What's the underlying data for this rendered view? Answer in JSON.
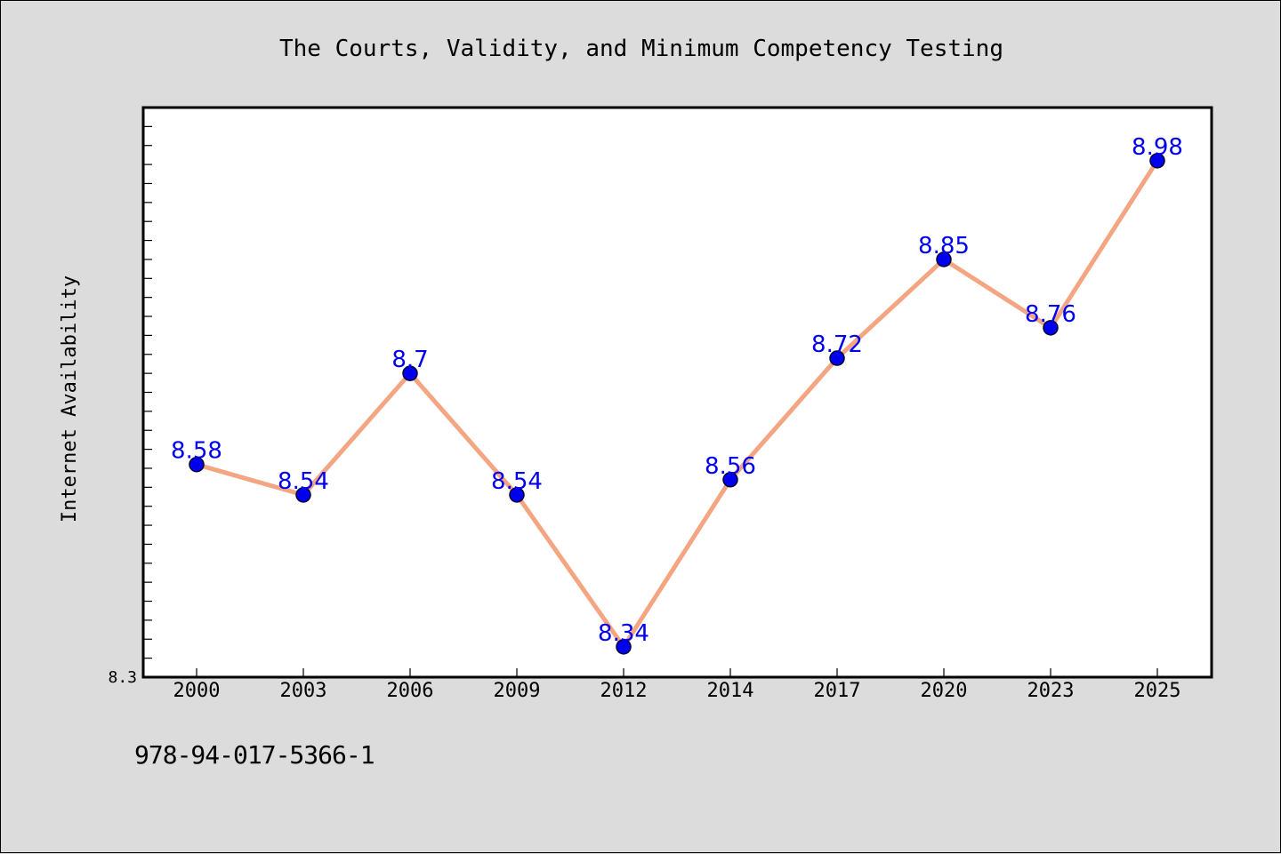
{
  "colors": {
    "background": "#dcdcdc",
    "plot_background": "#ffffff",
    "line": "#f4a582",
    "marker": "#0000ee",
    "data_label": "#0000ee"
  },
  "footer": {
    "isbn": "978-94-017-5366-1"
  },
  "chart_data": {
    "type": "line",
    "title": "The Courts, Validity, and Minimum Competency Testing",
    "xlabel": "",
    "ylabel": "Internet Availability",
    "categories": [
      "2000",
      "2003",
      "2006",
      "2009",
      "2012",
      "2014",
      "2017",
      "2020",
      "2023",
      "2025"
    ],
    "values": [
      8.58,
      8.54,
      8.7,
      8.54,
      8.34,
      8.56,
      8.72,
      8.85,
      8.76,
      8.98
    ],
    "data_labels": [
      "8.58",
      "8.54",
      "8.7",
      "8.54",
      "8.34",
      "8.56",
      "8.72",
      "8.85",
      "8.76",
      "8.98"
    ],
    "ylim": [
      8.3,
      9.05
    ],
    "ytick_labels": [
      "8.3"
    ],
    "grid": false,
    "legend": "none"
  }
}
